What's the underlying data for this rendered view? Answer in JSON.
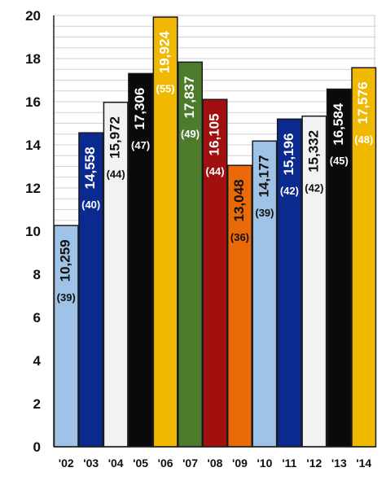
{
  "chart_data": {
    "type": "bar",
    "title": "",
    "xlabel": "",
    "ylabel": "",
    "ylim": [
      0,
      20
    ],
    "yticks": [
      "0",
      "2",
      "4",
      "6",
      "8",
      "10",
      "12",
      "14",
      "16",
      "18",
      "20"
    ],
    "grid": true,
    "categories": [
      "'02",
      "'03",
      "'04",
      "'05",
      "'06",
      "'07",
      "'08",
      "'09",
      "'10",
      "'11",
      "'12",
      "'13",
      "'14"
    ],
    "values": [
      10.259,
      14.558,
      15.972,
      17.306,
      19.924,
      17.837,
      16.105,
      13.048,
      14.177,
      15.196,
      15.332,
      16.584,
      17.576
    ],
    "value_labels": [
      "10,259",
      "14,558",
      "15,972",
      "17,306",
      "19,924",
      "17,837",
      "16,105",
      "13,048",
      "14,177",
      "15,196",
      "15,332",
      "16,584",
      "17,576"
    ],
    "count_labels": [
      "(39)",
      "(40)",
      "(44)",
      "(47)",
      "(55)",
      "(49)",
      "(44)",
      "(36)",
      "(39)",
      "(42)",
      "(42)",
      "(45)",
      "(48)"
    ],
    "bar_colors": [
      "#9fc3e6",
      "#0a2a8f",
      "#f2f2f2",
      "#0a0a0a",
      "#f0b800",
      "#4e7a2c",
      "#a10f0f",
      "#ea6a0a",
      "#9fc3e6",
      "#0a2a8f",
      "#f2f2f2",
      "#0a0a0a",
      "#f0b800"
    ],
    "label_colors": [
      "#111111",
      "#ffffff",
      "#111111",
      "#ffffff",
      "#ffffff",
      "#ffffff",
      "#ffffff",
      "#111111",
      "#111111",
      "#ffffff",
      "#111111",
      "#ffffff",
      "#ffffff"
    ]
  }
}
